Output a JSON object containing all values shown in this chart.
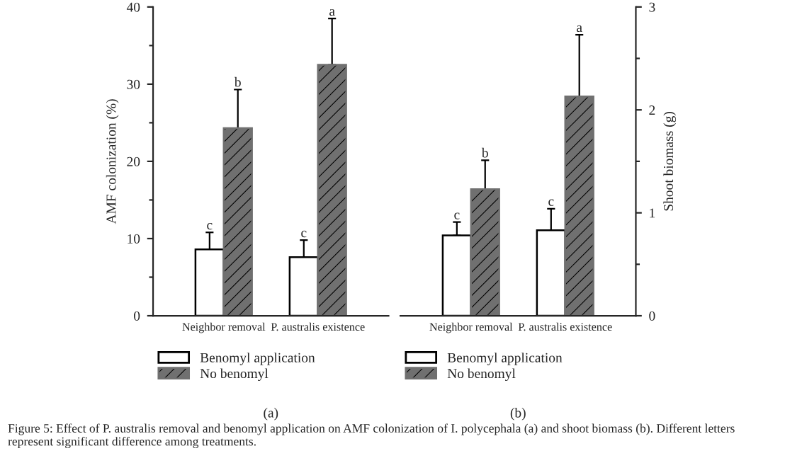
{
  "chart_data": [
    {
      "type": "bar",
      "categories": [
        "Neighbor removal",
        "P. australis existence"
      ],
      "ylabel": "AMF colonization (%)",
      "xlabel": "(a)",
      "ylim": [
        0,
        40
      ],
      "yticks": [
        0,
        10,
        20,
        30,
        40
      ],
      "legend": "bottom",
      "grid": false,
      "series": [
        {
          "name": "Benomyl application",
          "color": "#ffffff",
          "values": [
            8.6,
            7.6
          ],
          "errors": [
            2.2,
            2.2
          ]
        },
        {
          "name": "No benomyl",
          "color": "#707070",
          "values": [
            24.3,
            32.5
          ],
          "errors": [
            5.0,
            6.0
          ]
        }
      ],
      "annotations": [
        "c",
        "b",
        "c",
        "a",
        "Figure 5: Effect of P. australis removal and benomyl application on AMF colonization of I. polycephala (a) and shoot biomass (b). Different letters represent significant difference among treatments."
      ]
    },
    {
      "type": "bar",
      "categories": [
        "Neighbor removal",
        "P. australis existence"
      ],
      "y2label": "Shoot biomass (g)",
      "xlabel": "(b)",
      "y2lim": [
        0,
        3
      ],
      "y2ticks": [
        0,
        1,
        2,
        3
      ],
      "legend": "bottom",
      "grid": false,
      "series": [
        {
          "name": "Benomyl application",
          "color": "#ffffff",
          "values": [
            0.78,
            0.83
          ],
          "errors": [
            0.13,
            0.21
          ],
          "axis": "y2"
        },
        {
          "name": "No benomyl",
          "color": "#707070",
          "values": [
            1.23,
            2.13
          ],
          "errors": [
            0.28,
            0.6
          ],
          "axis": "y2"
        }
      ],
      "annotations": [
        "c",
        "b",
        "c",
        "a"
      ]
    }
  ]
}
